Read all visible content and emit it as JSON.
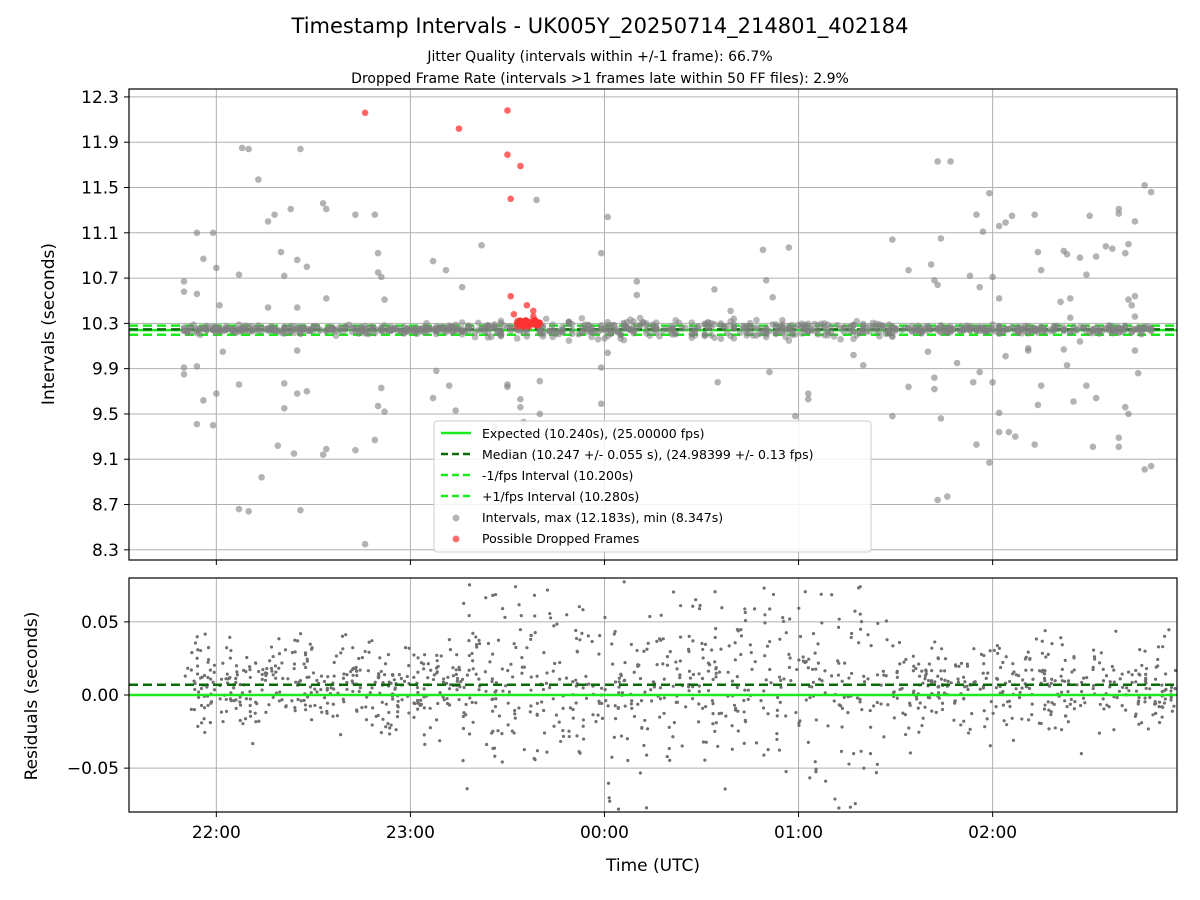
{
  "title": "Timestamp Intervals - UK005Y_20250714_214801_402184",
  "subtitle1": "Jitter Quality (intervals within +/-1 frame): 66.7%",
  "subtitle2": "Dropped Frame Rate (intervals >1 frames late within 50 FF files): 2.9%",
  "colors": {
    "expected": "#1aeb1a",
    "median": "#0b6b0b",
    "interval_lines": "#1aeb1a",
    "points": "#808080",
    "dropped": "#ff3333",
    "grid": "#b0b0b0"
  },
  "chart_data": [
    {
      "type": "scatter",
      "panel": "top",
      "xlabel": "",
      "ylabel": "Intervals (seconds)",
      "x_ticks": [
        "22:00",
        "23:00",
        "00:00",
        "01:00",
        "02:00"
      ],
      "xlim": [
        "21:33",
        "02:57"
      ],
      "ylim": [
        8.21,
        12.37
      ],
      "y_ticks": [
        "8.3",
        "8.7",
        "9.1",
        "9.5",
        "9.9",
        "10.3",
        "10.7",
        "11.1",
        "11.5",
        "11.9",
        "12.3"
      ],
      "grid": true,
      "legend_position": "lower-center",
      "lines": {
        "expected": 10.24,
        "median": 10.247,
        "minus_fps": 10.2,
        "plus_fps": 10.28
      },
      "legend": [
        "Expected (10.240s), (25.00000 fps)",
        "Median (10.247 +/- 0.055 s), (24.98399 +/- 0.13 fps)",
        "-1/fps Interval (10.200s)",
        "+1/fps Interval (10.280s)",
        "Intervals, max (12.183s), min (8.347s)",
        "Possible Dropped Frames"
      ],
      "dropped_points": [
        {
          "x": "22:46",
          "y": 12.16
        },
        {
          "x": "23:15",
          "y": 12.02
        },
        {
          "x": "23:30",
          "y": 12.18
        },
        {
          "x": "23:30",
          "y": 11.79
        },
        {
          "x": "23:34",
          "y": 11.69
        },
        {
          "x": "23:31",
          "y": 11.4
        },
        {
          "x": "23:31",
          "y": 10.54
        },
        {
          "x": "23:32",
          "y": 10.38
        },
        {
          "x": "23:36",
          "y": 10.46
        },
        {
          "x": "23:38",
          "y": 10.41
        },
        {
          "x": "23:38",
          "y": 10.36
        },
        {
          "x": "23:33",
          "y": 10.3
        },
        {
          "x": "23:36",
          "y": 10.32
        },
        {
          "x": "23:34",
          "y": 10.28
        },
        {
          "x": "23:37",
          "y": 10.29
        },
        {
          "x": "23:39",
          "y": 10.3
        }
      ],
      "outlier_points": [
        {
          "x": "21:50",
          "y": 10.67
        },
        {
          "x": "21:50",
          "y": 10.58
        },
        {
          "x": "21:54",
          "y": 11.1
        },
        {
          "x": "21:54",
          "y": 10.56
        },
        {
          "x": "21:56",
          "y": 10.87
        },
        {
          "x": "21:59",
          "y": 11.1
        },
        {
          "x": "22:00",
          "y": 10.79
        },
        {
          "x": "22:01",
          "y": 10.46
        },
        {
          "x": "21:50",
          "y": 9.91
        },
        {
          "x": "21:50",
          "y": 9.85
        },
        {
          "x": "21:54",
          "y": 9.92
        },
        {
          "x": "21:56",
          "y": 9.62
        },
        {
          "x": "22:00",
          "y": 9.68
        },
        {
          "x": "21:54",
          "y": 9.41
        },
        {
          "x": "21:59",
          "y": 9.4
        },
        {
          "x": "22:02",
          "y": 10.05
        },
        {
          "x": "22:07",
          "y": 10.73
        },
        {
          "x": "22:07",
          "y": 9.76
        },
        {
          "x": "22:08",
          "y": 11.85
        },
        {
          "x": "22:10",
          "y": 11.84
        },
        {
          "x": "22:13",
          "y": 11.57
        },
        {
          "x": "22:14",
          "y": 8.94
        },
        {
          "x": "22:16",
          "y": 11.2
        },
        {
          "x": "22:16",
          "y": 10.44
        },
        {
          "x": "22:18",
          "y": 11.26
        },
        {
          "x": "22:19",
          "y": 9.22
        },
        {
          "x": "22:20",
          "y": 10.93
        },
        {
          "x": "22:21",
          "y": 10.72
        },
        {
          "x": "22:21",
          "y": 9.55
        },
        {
          "x": "22:21",
          "y": 9.77
        },
        {
          "x": "22:23",
          "y": 11.31
        },
        {
          "x": "22:24",
          "y": 9.15
        },
        {
          "x": "22:25",
          "y": 10.86
        },
        {
          "x": "22:25",
          "y": 10.44
        },
        {
          "x": "22:25",
          "y": 10.06
        },
        {
          "x": "22:25",
          "y": 9.68
        },
        {
          "x": "22:26",
          "y": 11.84
        },
        {
          "x": "22:26",
          "y": 8.65
        },
        {
          "x": "22:28",
          "y": 10.8
        },
        {
          "x": "22:28",
          "y": 9.7
        },
        {
          "x": "22:33",
          "y": 11.36
        },
        {
          "x": "22:34",
          "y": 11.31
        },
        {
          "x": "22:34",
          "y": 10.52
        },
        {
          "x": "22:33",
          "y": 9.14
        },
        {
          "x": "22:34",
          "y": 9.19
        },
        {
          "x": "22:07",
          "y": 8.66
        },
        {
          "x": "22:10",
          "y": 8.64
        },
        {
          "x": "22:43",
          "y": 11.26
        },
        {
          "x": "22:43",
          "y": 9.18
        },
        {
          "x": "22:46",
          "y": 8.35
        },
        {
          "x": "22:49",
          "y": 11.26
        },
        {
          "x": "22:50",
          "y": 10.92
        },
        {
          "x": "22:50",
          "y": 10.75
        },
        {
          "x": "22:51",
          "y": 10.71
        },
        {
          "x": "22:51",
          "y": 9.73
        },
        {
          "x": "22:50",
          "y": 9.57
        },
        {
          "x": "22:52",
          "y": 9.52
        },
        {
          "x": "22:52",
          "y": 10.51
        },
        {
          "x": "22:49",
          "y": 9.27
        },
        {
          "x": "23:07",
          "y": 10.85
        },
        {
          "x": "23:08",
          "y": 9.88
        },
        {
          "x": "23:07",
          "y": 9.64
        },
        {
          "x": "23:11",
          "y": 10.77
        },
        {
          "x": "23:12",
          "y": 9.75
        },
        {
          "x": "23:14",
          "y": 9.53
        },
        {
          "x": "23:16",
          "y": 10.62
        },
        {
          "x": "23:22",
          "y": 10.99
        },
        {
          "x": "23:26",
          "y": 9.39
        },
        {
          "x": "23:30",
          "y": 9.76
        },
        {
          "x": "23:30",
          "y": 9.74
        },
        {
          "x": "23:34",
          "y": 9.63
        },
        {
          "x": "23:34",
          "y": 9.56
        },
        {
          "x": "23:35",
          "y": 9.43
        },
        {
          "x": "23:39",
          "y": 11.39
        },
        {
          "x": "23:40",
          "y": 9.79
        },
        {
          "x": "23:40",
          "y": 9.5
        },
        {
          "x": "23:59",
          "y": 10.92
        },
        {
          "x": "23:59",
          "y": 9.59
        },
        {
          "x": "23:59",
          "y": 9.91
        },
        {
          "x": "00:01",
          "y": 11.24
        },
        {
          "x": "00:01",
          "y": 10.04
        },
        {
          "x": "00:10",
          "y": 10.67
        },
        {
          "x": "00:10",
          "y": 10.55
        },
        {
          "x": "00:34",
          "y": 10.6
        },
        {
          "x": "00:35",
          "y": 9.78
        },
        {
          "x": "00:39",
          "y": 10.41
        },
        {
          "x": "00:40",
          "y": 10.34
        },
        {
          "x": "00:49",
          "y": 10.95
        },
        {
          "x": "00:50",
          "y": 10.68
        },
        {
          "x": "00:51",
          "y": 9.87
        },
        {
          "x": "00:52",
          "y": 10.53
        },
        {
          "x": "00:57",
          "y": 10.97
        },
        {
          "x": "00:59",
          "y": 9.48
        },
        {
          "x": "01:03",
          "y": 9.68
        },
        {
          "x": "01:03",
          "y": 9.63
        },
        {
          "x": "01:17",
          "y": 10.02
        },
        {
          "x": "01:20",
          "y": 9.93
        },
        {
          "x": "01:29",
          "y": 11.04
        },
        {
          "x": "01:29",
          "y": 9.48
        },
        {
          "x": "01:34",
          "y": 10.77
        },
        {
          "x": "01:34",
          "y": 9.74
        },
        {
          "x": "01:40",
          "y": 10.05
        },
        {
          "x": "01:41",
          "y": 10.82
        },
        {
          "x": "01:42",
          "y": 10.68
        },
        {
          "x": "01:43",
          "y": 10.64
        },
        {
          "x": "01:42",
          "y": 9.82
        },
        {
          "x": "01:42",
          "y": 9.72
        },
        {
          "x": "01:43",
          "y": 11.73
        },
        {
          "x": "01:47",
          "y": 11.73
        },
        {
          "x": "01:44",
          "y": 11.05
        },
        {
          "x": "01:44",
          "y": 9.46
        },
        {
          "x": "01:43",
          "y": 8.74
        },
        {
          "x": "01:46",
          "y": 8.77
        },
        {
          "x": "01:49",
          "y": 9.95
        },
        {
          "x": "01:53",
          "y": 10.72
        },
        {
          "x": "01:54",
          "y": 9.78
        },
        {
          "x": "01:55",
          "y": 11.26
        },
        {
          "x": "01:56",
          "y": 10.62
        },
        {
          "x": "01:56",
          "y": 9.87
        },
        {
          "x": "01:57",
          "y": 11.11
        },
        {
          "x": "01:55",
          "y": 9.23
        },
        {
          "x": "01:59",
          "y": 11.45
        },
        {
          "x": "02:00",
          "y": 10.71
        },
        {
          "x": "02:00",
          "y": 9.78
        },
        {
          "x": "01:59",
          "y": 9.07
        },
        {
          "x": "02:02",
          "y": 11.16
        },
        {
          "x": "02:02",
          "y": 10.52
        },
        {
          "x": "02:02",
          "y": 9.34
        },
        {
          "x": "02:02",
          "y": 9.51
        },
        {
          "x": "02:04",
          "y": 11.19
        },
        {
          "x": "02:04",
          "y": 10.01
        },
        {
          "x": "02:05",
          "y": 9.34
        },
        {
          "x": "02:06",
          "y": 11.25
        },
        {
          "x": "02:07",
          "y": 9.3
        },
        {
          "x": "02:11",
          "y": 10.06
        },
        {
          "x": "02:11",
          "y": 10.08
        },
        {
          "x": "02:13",
          "y": 11.26
        },
        {
          "x": "02:14",
          "y": 10.93
        },
        {
          "x": "02:14",
          "y": 9.58
        },
        {
          "x": "02:13",
          "y": 9.23
        },
        {
          "x": "02:15",
          "y": 10.77
        },
        {
          "x": "02:15",
          "y": 9.75
        },
        {
          "x": "02:21",
          "y": 10.49
        },
        {
          "x": "02:22",
          "y": 10.94
        },
        {
          "x": "02:22",
          "y": 10.07
        },
        {
          "x": "02:23",
          "y": 10.91
        },
        {
          "x": "02:23",
          "y": 9.93
        },
        {
          "x": "02:24",
          "y": 10.52
        },
        {
          "x": "02:24",
          "y": 10.35
        },
        {
          "x": "02:25",
          "y": 9.61
        },
        {
          "x": "02:27",
          "y": 10.88
        },
        {
          "x": "02:27",
          "y": 10.14
        },
        {
          "x": "02:29",
          "y": 10.73
        },
        {
          "x": "02:29",
          "y": 9.75
        },
        {
          "x": "02:30",
          "y": 11.25
        },
        {
          "x": "02:31",
          "y": 9.21
        },
        {
          "x": "02:32",
          "y": 10.89
        },
        {
          "x": "02:32",
          "y": 9.64
        },
        {
          "x": "02:35",
          "y": 10.98
        },
        {
          "x": "02:37",
          "y": 10.96
        },
        {
          "x": "02:39",
          "y": 11.27
        },
        {
          "x": "02:39",
          "y": 11.31
        },
        {
          "x": "02:39",
          "y": 9.29
        },
        {
          "x": "02:39",
          "y": 9.21
        },
        {
          "x": "02:41",
          "y": 10.92
        },
        {
          "x": "02:41",
          "y": 9.56
        },
        {
          "x": "02:42",
          "y": 11.0
        },
        {
          "x": "02:42",
          "y": 10.51
        },
        {
          "x": "02:42",
          "y": 9.5
        },
        {
          "x": "02:43",
          "y": 10.46
        },
        {
          "x": "02:44",
          "y": 10.54
        },
        {
          "x": "02:44",
          "y": 11.2
        },
        {
          "x": "02:44",
          "y": 10.06
        },
        {
          "x": "02:44",
          "y": 10.36
        },
        {
          "x": "02:47",
          "y": 11.52
        },
        {
          "x": "02:49",
          "y": 11.46
        },
        {
          "x": "02:47",
          "y": 9.01
        },
        {
          "x": "02:49",
          "y": 9.04
        },
        {
          "x": "02:45",
          "y": 9.86
        }
      ]
    },
    {
      "type": "scatter",
      "panel": "bottom",
      "xlabel": "Time (UTC)",
      "ylabel": "Residuals (seconds)",
      "x_ticks": [
        "22:00",
        "23:00",
        "00:00",
        "01:00",
        "02:00"
      ],
      "xlim": [
        "21:33",
        "02:57"
      ],
      "ylim": [
        -0.08,
        0.08
      ],
      "y_ticks": [
        "−0.05",
        "0.00",
        "0.05"
      ],
      "grid": true,
      "lines": {
        "zero": 0.0,
        "median": 0.007
      }
    }
  ]
}
